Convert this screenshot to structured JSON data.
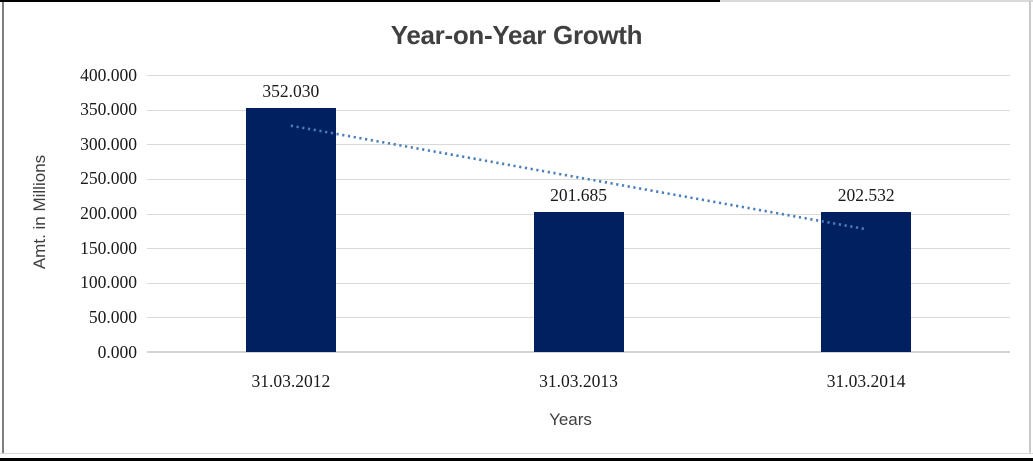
{
  "chart_data": {
    "type": "bar",
    "title": "Year-on-Year Growth",
    "categories": [
      "31.03.2012",
      "31.03.2013",
      "31.03.2014"
    ],
    "values": [
      352.03,
      201.685,
      202.532
    ],
    "data_labels": [
      "352.030",
      "201.685",
      "202.532"
    ],
    "xlabel": "Years",
    "ylabel": "Amt. in Millions",
    "ylim": [
      0,
      400
    ],
    "ytick_step": 50,
    "ytick_labels": [
      "400.000",
      "350.000",
      "300.000",
      "250.000",
      "200.000",
      "150.000",
      "100.000",
      "50.000",
      "0.000"
    ],
    "grid": "horizontal",
    "legend": "none",
    "trendline": {
      "type": "linear",
      "style": "dotted",
      "start_value": 326.8,
      "end_value": 177.3
    },
    "colors": {
      "bar": "#002060",
      "trendline": "#4a7ebb",
      "gridline": "#d9d9d9",
      "axis_line": "#d3d3d3",
      "title_text": "#404040",
      "axis_title_text": "#3f3f3f",
      "tick_text": "#1a1a1a"
    }
  },
  "frame": {
    "background": "#ffffff",
    "top_rule_color": "#000000",
    "top_rule_right_color": "#d9d9d9",
    "bottom_rule_color": "#000000",
    "inner_bottom_rule_color": "#d9d9d9",
    "left_rule_color": "#7f7f7f",
    "right_rule_color": "#c9c9c9"
  }
}
